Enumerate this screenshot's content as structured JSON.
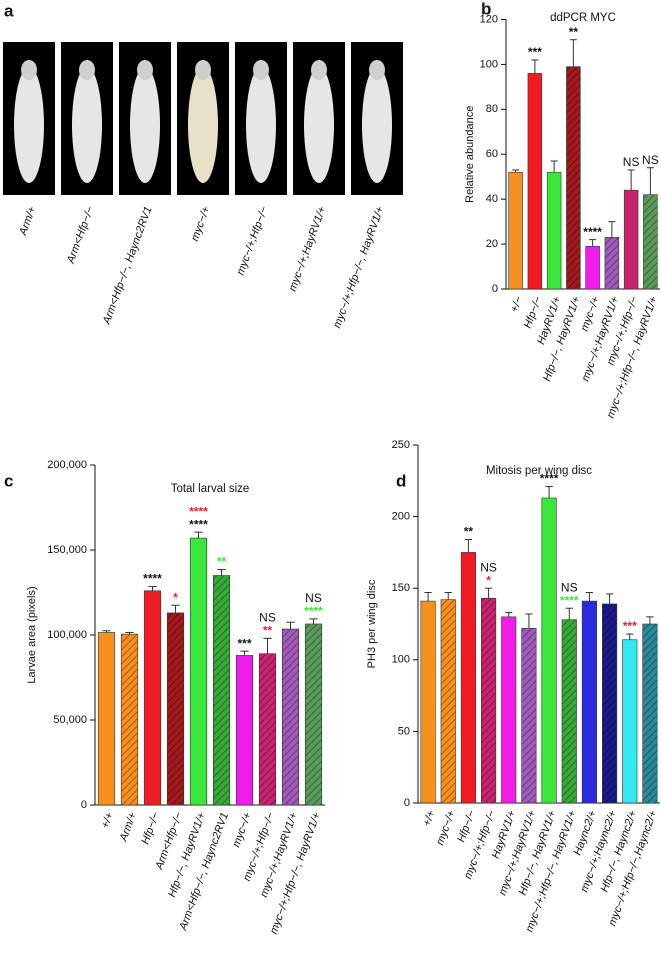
{
  "panel_a": {
    "letter": "a",
    "labels": [
      "Arm/+",
      "Arm<Hfp−/−",
      "Arm<Hfp−/−, Haync2RV1",
      "myc−/+",
      "myc−/+;Hfp−/−",
      "myc−/+;HayRV1/+",
      "myc−/+;Hfp−/−, HayRV1/+"
    ]
  },
  "chart_data": [
    {
      "letter": "b",
      "type": "bar",
      "title": "ddPCR MYC",
      "y_label": "Relative abundance",
      "categories": [
        "+/−",
        "Hfp−/−",
        "HayRV1/+",
        "Hfp−/−, HayRV1/+",
        "myc−/+",
        "myc−/+;HayRV1/+",
        "myc−/+;Hfp−/−",
        "myc−/+;Hfp−/−, HayRV1/+"
      ],
      "values": [
        52,
        96,
        52,
        99,
        19,
        23,
        44,
        42
      ],
      "errors": [
        1,
        6,
        5,
        12,
        3,
        7,
        9,
        12
      ],
      "colors": [
        "#f7901e",
        "#ee1c24",
        "#39e639",
        "#a3191e",
        "#ee1ee8",
        "#a25ab8",
        "#c8246e",
        "#5a9a5a"
      ],
      "hatched": [
        false,
        false,
        false,
        true,
        false,
        true,
        false,
        true
      ],
      "annotations": [
        null,
        [
          {
            "text": "***",
            "color": "#111111"
          }
        ],
        null,
        [
          {
            "text": "**",
            "color": "#111111"
          }
        ],
        [
          {
            "text": "****",
            "color": "#111111"
          }
        ],
        null,
        [
          {
            "text": "NS",
            "color": "#111111"
          }
        ],
        [
          {
            "text": "NS",
            "color": "#111111"
          }
        ]
      ],
      "ylim": [
        0,
        120
      ],
      "yticks": [
        0,
        20,
        40,
        60,
        80,
        100,
        120
      ]
    },
    {
      "letter": "c",
      "type": "bar",
      "title": "Total larval size",
      "y_label": "Larvae area (pixels)",
      "categories": [
        "+/+",
        "Arm/+",
        "Hfp−/−",
        "Arm<Hfp−/−",
        "Hfp−/−, HayRV1/+",
        "Arm<Hfp−/−, Haync2RV1",
        "myc−/+",
        "myc−/+;Hfp−/−",
        "myc−/+;HayRV1/+",
        "myc−/+;Hfp−/−, HayRV1/+"
      ],
      "values": [
        101500,
        100500,
        126000,
        113000,
        157000,
        135000,
        88000,
        89000,
        103500,
        106500
      ],
      "errors": [
        1000,
        1000,
        2500,
        4500,
        3500,
        3500,
        2500,
        9000,
        4000,
        3000
      ],
      "colors": [
        "#f7901e",
        "#f7901e",
        "#ee1c24",
        "#a3191e",
        "#39e639",
        "#39a839",
        "#ee1ee8",
        "#c8246e",
        "#a25ab8",
        "#5a9a5a"
      ],
      "hatched": [
        false,
        true,
        false,
        true,
        false,
        true,
        false,
        true,
        true,
        true
      ],
      "annotations": [
        null,
        null,
        [
          {
            "text": "****",
            "color": "#111111"
          }
        ],
        [
          {
            "text": "*",
            "color": "#ee1c24"
          }
        ],
        [
          {
            "text": "****",
            "color": "#111111"
          },
          {
            "text": "****",
            "color": "#ee1c24"
          }
        ],
        [
          {
            "text": "**",
            "color": "#39e639"
          }
        ],
        [
          {
            "text": "***",
            "color": "#111111"
          }
        ],
        [
          {
            "text": "**",
            "color": "#ee1c24"
          },
          {
            "text": "NS",
            "color": "#111111"
          }
        ],
        null,
        [
          {
            "text": "****",
            "color": "#39e639"
          },
          {
            "text": "NS",
            "color": "#111111"
          }
        ]
      ],
      "ylim": [
        0,
        200000
      ],
      "yticks": [
        0,
        {
          "value": 50000,
          "label": "50,000"
        },
        {
          "value": 100000,
          "label": "100,000"
        },
        {
          "value": 150000,
          "label": "150,000"
        },
        {
          "value": 200000,
          "label": "200,000"
        }
      ]
    },
    {
      "letter": "d",
      "type": "bar",
      "title": "Mitosis per wing disc",
      "y_label": "PH3 per wing disc",
      "categories": [
        "+/+",
        "myc−/+",
        "Hfp−/−",
        "myc−/+;Hfp−/−",
        "HayRV1/+",
        "myc−/+;HayRV1/+",
        "Hfp−/−, HayRV1/+",
        "myc−/+;Hfp−/−, HayRV1/+",
        "Haync2/+",
        "myc−/+;Haync2/+",
        "Hfp−/−, Haync2/+",
        "myc−/+;Hfp−/−,Haync2/+"
      ],
      "values": [
        141,
        142,
        175,
        143,
        130,
        122,
        213,
        128,
        141,
        139,
        114,
        125
      ],
      "errors": [
        6,
        5,
        9,
        7,
        3,
        10,
        8,
        8,
        6,
        7,
        4,
        5
      ],
      "colors": [
        "#f7901e",
        "#f7901e",
        "#ee1c24",
        "#c8246e",
        "#ee1ee8",
        "#a25ab8",
        "#39e639",
        "#39a839",
        "#2a2ae0",
        "#1a1a8a",
        "#33e8f0",
        "#2a8a9a"
      ],
      "hatched": [
        false,
        true,
        false,
        true,
        false,
        true,
        false,
        true,
        false,
        true,
        false,
        true
      ],
      "annotations": [
        null,
        null,
        [
          {
            "text": "**",
            "color": "#111111"
          }
        ],
        [
          {
            "text": "*",
            "color": "#ee1c24"
          },
          {
            "text": "NS",
            "color": "#111111"
          }
        ],
        null,
        null,
        [
          {
            "text": "****",
            "color": "#111111"
          }
        ],
        [
          {
            "text": "****",
            "color": "#39e639"
          },
          {
            "text": "NS",
            "color": "#111111"
          }
        ],
        null,
        null,
        [
          {
            "text": "***",
            "color": "#ee1c24"
          }
        ],
        null
      ],
      "ylim": [
        0,
        250
      ],
      "yticks": [
        0,
        50,
        100,
        150,
        200,
        250
      ]
    }
  ]
}
